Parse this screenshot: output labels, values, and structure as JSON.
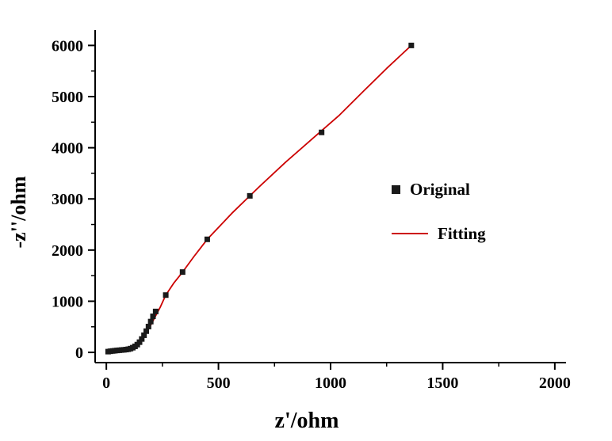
{
  "chart_data": {
    "type": "scatter",
    "title": "",
    "xlabel": "z'/ohm",
    "ylabel": "-z''/ohm",
    "xlim": [
      0,
      2000
    ],
    "ylim": [
      0,
      6000
    ],
    "x_ticks": [
      0,
      500,
      1000,
      1500,
      2000
    ],
    "y_ticks": [
      0,
      1000,
      2000,
      3000,
      4000,
      5000,
      6000
    ],
    "x_minor_step": 250,
    "y_minor_step": 500,
    "grid": false,
    "legend_position": "inside-right",
    "series": [
      {
        "name": "Original",
        "type": "scatter",
        "marker": "square",
        "color": "#1a1a1a",
        "points": [
          [
            8,
            15
          ],
          [
            18,
            22
          ],
          [
            28,
            28
          ],
          [
            38,
            33
          ],
          [
            48,
            38
          ],
          [
            58,
            42
          ],
          [
            68,
            46
          ],
          [
            78,
            50
          ],
          [
            88,
            55
          ],
          [
            98,
            62
          ],
          [
            108,
            74
          ],
          [
            118,
            92
          ],
          [
            128,
            118
          ],
          [
            138,
            152
          ],
          [
            148,
            200
          ],
          [
            158,
            262
          ],
          [
            168,
            335
          ],
          [
            178,
            415
          ],
          [
            188,
            505
          ],
          [
            198,
            602
          ],
          [
            208,
            705
          ],
          [
            220,
            800
          ],
          [
            265,
            1120
          ],
          [
            340,
            1570
          ],
          [
            450,
            2210
          ],
          [
            640,
            3060
          ],
          [
            960,
            4300
          ],
          [
            1360,
            6000
          ]
        ]
      },
      {
        "name": "Fitting",
        "type": "line",
        "color": "#cc0000",
        "points": [
          [
            5,
            12
          ],
          [
            20,
            24
          ],
          [
            40,
            35
          ],
          [
            60,
            43
          ],
          [
            80,
            52
          ],
          [
            100,
            64
          ],
          [
            115,
            85
          ],
          [
            130,
            125
          ],
          [
            145,
            185
          ],
          [
            160,
            262
          ],
          [
            175,
            360
          ],
          [
            190,
            470
          ],
          [
            205,
            590
          ],
          [
            220,
            715
          ],
          [
            240,
            880
          ],
          [
            265,
            1120
          ],
          [
            300,
            1350
          ],
          [
            340,
            1570
          ],
          [
            390,
            1870
          ],
          [
            450,
            2210
          ],
          [
            560,
            2720
          ],
          [
            680,
            3230
          ],
          [
            800,
            3720
          ],
          [
            920,
            4180
          ],
          [
            1040,
            4640
          ],
          [
            1150,
            5120
          ],
          [
            1250,
            5550
          ],
          [
            1360,
            6000
          ]
        ]
      }
    ],
    "legend": [
      {
        "label": "Original",
        "marker": "square",
        "color": "#1a1a1a"
      },
      {
        "label": "Fitting",
        "marker": "line",
        "color": "#cc0000"
      }
    ]
  },
  "colors": {
    "background": "#ffffff",
    "axis": "#000000",
    "tick_label": "#000000",
    "marker": "#1a1a1a",
    "fit_line": "#cc0000"
  }
}
